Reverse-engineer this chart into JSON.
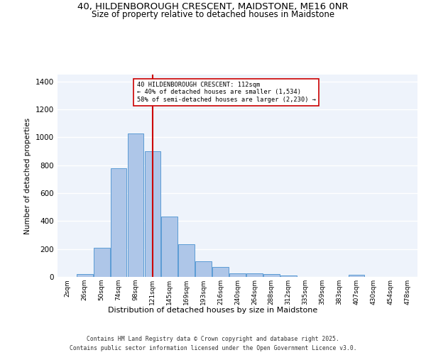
{
  "title_line1": "40, HILDENBOROUGH CRESCENT, MAIDSTONE, ME16 0NR",
  "title_line2": "Size of property relative to detached houses in Maidstone",
  "xlabel": "Distribution of detached houses by size in Maidstone",
  "ylabel": "Number of detached properties",
  "categories": [
    "2sqm",
    "26sqm",
    "50sqm",
    "74sqm",
    "98sqm",
    "121sqm",
    "145sqm",
    "169sqm",
    "193sqm",
    "216sqm",
    "240sqm",
    "264sqm",
    "288sqm",
    "312sqm",
    "335sqm",
    "359sqm",
    "383sqm",
    "407sqm",
    "430sqm",
    "454sqm",
    "478sqm"
  ],
  "values": [
    0,
    20,
    210,
    780,
    1030,
    900,
    430,
    235,
    110,
    70,
    25,
    25,
    20,
    10,
    0,
    0,
    0,
    15,
    0,
    0,
    0
  ],
  "bar_color": "#aec6e8",
  "bar_edge_color": "#5b9bd5",
  "bg_color": "#eef3fb",
  "grid_color": "#ffffff",
  "vline_x": 5,
  "vline_color": "#cc0000",
  "annotation_text": "40 HILDENBOROUGH CRESCENT: 112sqm\n← 40% of detached houses are smaller (1,534)\n58% of semi-detached houses are larger (2,230) →",
  "annotation_box_color": "#ffffff",
  "annotation_box_edge_color": "#cc0000",
  "ylim": [
    0,
    1450
  ],
  "yticks": [
    0,
    200,
    400,
    600,
    800,
    1000,
    1200,
    1400
  ],
  "footer_line1": "Contains HM Land Registry data © Crown copyright and database right 2025.",
  "footer_line2": "Contains public sector information licensed under the Open Government Licence v3.0."
}
